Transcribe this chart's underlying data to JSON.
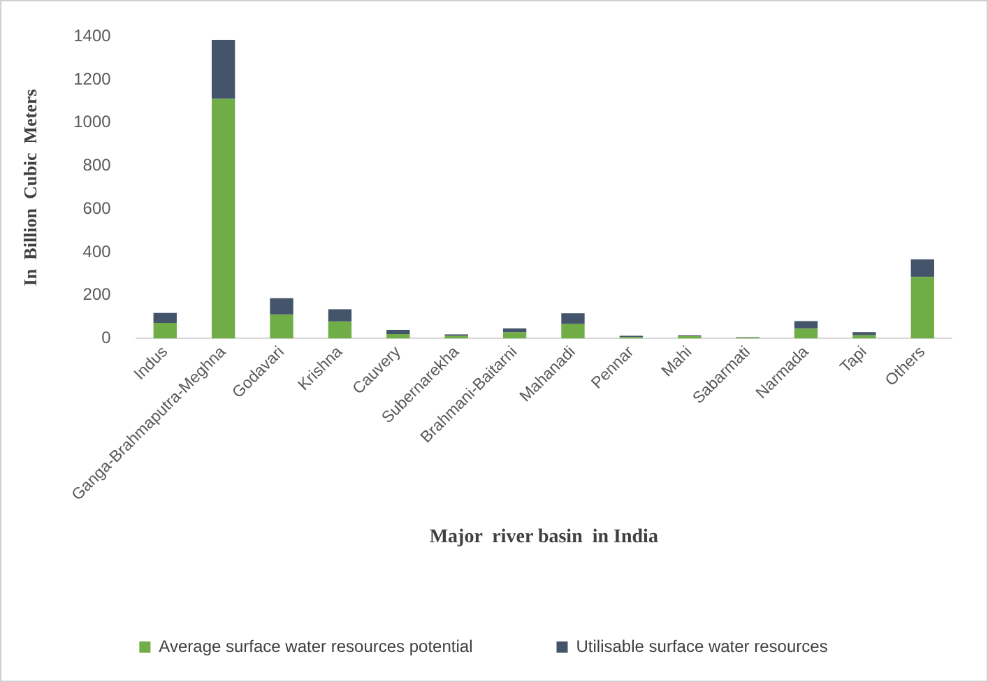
{
  "chart_data": {
    "type": "bar",
    "stacked": true,
    "xlabel": "Major  river basin  in India",
    "ylabel": "In  Billion  Cubic  Meters",
    "categories": [
      "Indus",
      "Ganga-Brahmaputra-Meghna",
      "Godavari",
      "Krishna",
      "Cauvery",
      "Subernarekha",
      "Brahmani-Baitarni",
      "Mahanadi",
      "Pennar",
      "Mahi",
      "Sabarmati",
      "Narmada",
      "Tapi",
      "Others"
    ],
    "series": [
      {
        "name": "Average surface water resources potential",
        "color": "#70ad47",
        "values": [
          73,
          1111,
          111,
          78,
          21,
          12,
          29,
          67,
          6,
          11,
          4,
          46,
          15,
          286
        ]
      },
      {
        "name": "Utilisable surface water resources",
        "color": "#44546a",
        "values": [
          46,
          274,
          76,
          58,
          19,
          7,
          18,
          50,
          7,
          3,
          2,
          35,
          15,
          81
        ]
      }
    ],
    "ylim": [
      0,
      1400
    ],
    "yticks": [
      0,
      200,
      400,
      600,
      800,
      1000,
      1200,
      1400
    ],
    "grid": false,
    "legend": "bottom"
  }
}
